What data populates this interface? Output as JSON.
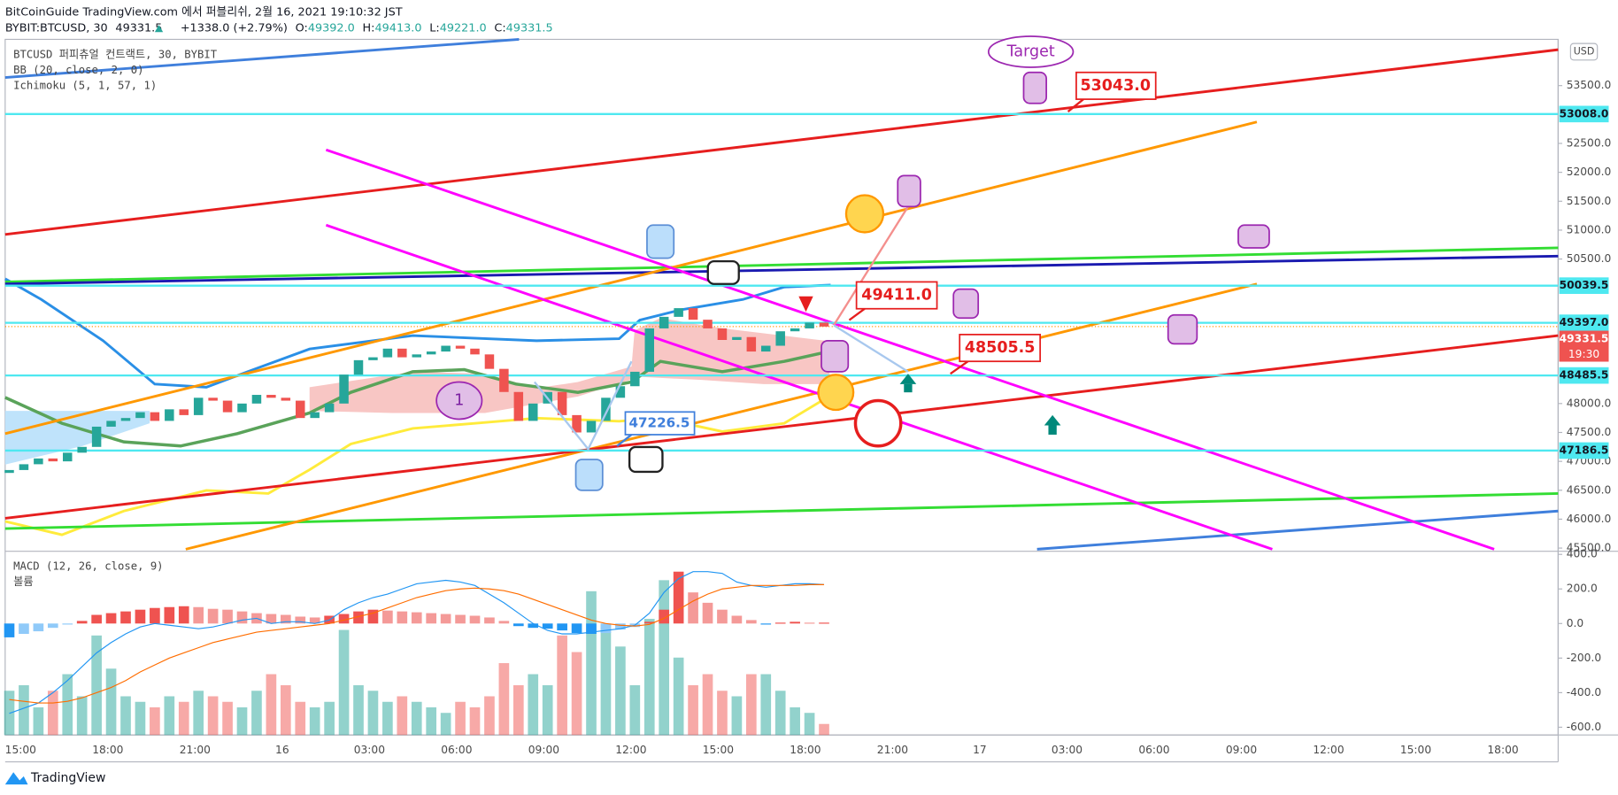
{
  "header": {
    "line1": "BitCoinGuide TradingView.com 에서 퍼블리쉬, 2월 16, 2021 19:10:32 JST",
    "symbol": "BYBIT:BTCUSD, 30",
    "last": "49331.5",
    "change": "+1338.0 (+2.79%)",
    "ohlc": [
      {
        "key": "O:",
        "value": "49392.0"
      },
      {
        "key": "H:",
        "value": "49413.0"
      },
      {
        "key": "L:",
        "value": "49221.0"
      },
      {
        "key": "C:",
        "value": "49331.5"
      }
    ]
  },
  "legend": [
    "BTCUSD 퍼피츄얼 컨트랙트, 30, BYBIT",
    "BB (20, close, 2, 0)",
    "Ichimoku (5, 1, 57, 1)"
  ],
  "lower_legend": [
    "MACD (12, 26, close, 9)",
    "볼륨"
  ],
  "currency": "USD",
  "footer": "TradingView",
  "chart_data": {
    "type": "candlestick",
    "up_color": "#26a69a",
    "down_color": "#ef5350",
    "xticks": [
      "15:00",
      "18:00",
      "21:00",
      "16",
      "03:00",
      "06:00",
      "09:00",
      "12:00",
      "15:00",
      "18:00",
      "21:00",
      "17",
      "03:00",
      "06:00",
      "09:00",
      "12:00",
      "15:00",
      "18:00"
    ],
    "open": [
      46800,
      46850,
      46950,
      47050,
      47000,
      47150,
      47250,
      47600,
      47700,
      47750,
      47850,
      47700,
      47900,
      47800,
      48100,
      48050,
      47850,
      48000,
      48150,
      48100,
      48050,
      47750,
      47850,
      48000,
      48500,
      48750,
      48800,
      48950,
      48800,
      48850,
      48900,
      49000,
      48950,
      48850,
      48600,
      48200,
      47700,
      48000,
      48200,
      47800,
      47500,
      47700,
      48100,
      48300,
      48550,
      49300,
      49500,
      49650,
      49450,
      49300,
      49100,
      49150,
      48900,
      49000,
      49250,
      49300,
      49400
    ],
    "close": [
      46850,
      46950,
      47050,
      47000,
      47150,
      47250,
      47600,
      47700,
      47750,
      47850,
      47700,
      47900,
      47800,
      48100,
      48050,
      47850,
      48000,
      48150,
      48100,
      48050,
      47750,
      47850,
      48000,
      48500,
      48750,
      48800,
      48950,
      48800,
      48850,
      48900,
      49000,
      48950,
      48850,
      48600,
      48200,
      47700,
      48000,
      48200,
      47800,
      47500,
      47700,
      48100,
      48300,
      48550,
      49300,
      49500,
      49650,
      49450,
      49300,
      49100,
      49150,
      48900,
      49000,
      49250,
      49300,
      49400,
      49331.5
    ],
    "ylim": [
      45480,
      54300
    ],
    "yticks": [
      {
        "value": 53500,
        "label": "53500.0"
      },
      {
        "value": 52500,
        "label": "52500.0"
      },
      {
        "value": 52000,
        "label": "52000.0"
      },
      {
        "value": 51500,
        "label": "51500.0"
      },
      {
        "value": 51000,
        "label": "51000.0"
      },
      {
        "value": 50500,
        "label": "50500.0"
      },
      {
        "value": 48000,
        "label": "48000.0"
      },
      {
        "value": 47500,
        "label": "47500.0"
      },
      {
        "value": 47000,
        "label": "47000.0"
      },
      {
        "value": 46500,
        "label": "46500.0"
      },
      {
        "value": 46000,
        "label": "46000.0"
      },
      {
        "value": 45500,
        "label": "45500.0"
      }
    ],
    "levels": [
      {
        "value": 53008,
        "label": "53008.0"
      },
      {
        "value": 50039.5,
        "label": "50039.5"
      },
      {
        "value": 49397,
        "label": "49397.0"
      },
      {
        "value": 48485.5,
        "label": "48485.5"
      },
      {
        "value": 47186.5,
        "label": "47186.5"
      }
    ],
    "level_color": "#4ee8f0",
    "last_price": {
      "value": 49331.5,
      "label": "49331.5",
      "countdown": "19:30",
      "color": "#ef5350"
    },
    "annotations": {
      "target": "Target",
      "a1": "53043.0",
      "a2": "49411.0",
      "a3": "48505.5",
      "a4": "47226.5",
      "wave": "1"
    },
    "volume": {
      "values": [
        40,
        45,
        25,
        40,
        55,
        35,
        90,
        60,
        35,
        30,
        25,
        35,
        30,
        40,
        35,
        30,
        25,
        40,
        55,
        45,
        30,
        25,
        30,
        95,
        45,
        40,
        30,
        35,
        30,
        25,
        20,
        30,
        25,
        35,
        65,
        45,
        55,
        45,
        90,
        75,
        130,
        100,
        80,
        45,
        105,
        140,
        70,
        45,
        55,
        40,
        35,
        55,
        55,
        40,
        25,
        20,
        10
      ],
      "up_color": "rgba(38,166,154,0.5)",
      "down_color": "rgba(239,83,80,0.5)"
    },
    "macd": {
      "ylim": [
        -645,
        400
      ],
      "yticks": [
        {
          "value": 400,
          "label": "400.0"
        },
        {
          "value": 200,
          "label": "200.0"
        },
        {
          "value": 0,
          "label": "0.0"
        },
        {
          "value": -200,
          "label": "-200.0"
        },
        {
          "value": -400,
          "label": "-400.0"
        },
        {
          "value": -600,
          "label": "-600.0"
        }
      ],
      "histogram": [
        -80,
        -60,
        -45,
        -25,
        -5,
        15,
        50,
        60,
        70,
        80,
        90,
        95,
        100,
        95,
        85,
        80,
        70,
        60,
        55,
        50,
        40,
        35,
        45,
        55,
        70,
        80,
        75,
        70,
        65,
        60,
        55,
        50,
        45,
        35,
        15,
        -15,
        -25,
        -30,
        -40,
        -55,
        -60,
        -55,
        -35,
        -20,
        10,
        80,
        300,
        180,
        120,
        80,
        45,
        20,
        -5,
        5,
        10,
        5,
        5
      ],
      "hist_colors": {
        "pos_up": "#ef5350",
        "pos_down": "#f49a98",
        "neg_down": "#2196f3",
        "neg_up": "#90caf9"
      },
      "macd_line": {
        "color": "#2196f3",
        "values": [
          -520,
          -490,
          -460,
          -400,
          -330,
          -250,
          -170,
          -110,
          -60,
          -20,
          0,
          -10,
          -20,
          -30,
          -20,
          0,
          20,
          30,
          0,
          10,
          10,
          0,
          20,
          80,
          120,
          150,
          170,
          200,
          230,
          240,
          250,
          240,
          220,
          170,
          120,
          60,
          0,
          -40,
          -60,
          -60,
          -50,
          -40,
          -30,
          -10,
          60,
          180,
          260,
          300,
          300,
          290,
          240,
          220,
          210,
          220,
          230,
          230,
          225
        ]
      },
      "signal_line": {
        "color": "#ff6d00",
        "values": [
          -440,
          -450,
          -460,
          -460,
          -450,
          -430,
          -400,
          -370,
          -330,
          -280,
          -240,
          -200,
          -170,
          -140,
          -110,
          -90,
          -70,
          -50,
          -40,
          -30,
          -20,
          -10,
          0,
          20,
          40,
          60,
          90,
          120,
          150,
          170,
          190,
          200,
          205,
          200,
          190,
          170,
          140,
          110,
          80,
          50,
          20,
          0,
          -10,
          -15,
          -5,
          30,
          80,
          130,
          170,
          200,
          210,
          220,
          220,
          220,
          220,
          225,
          225
        ]
      }
    }
  }
}
